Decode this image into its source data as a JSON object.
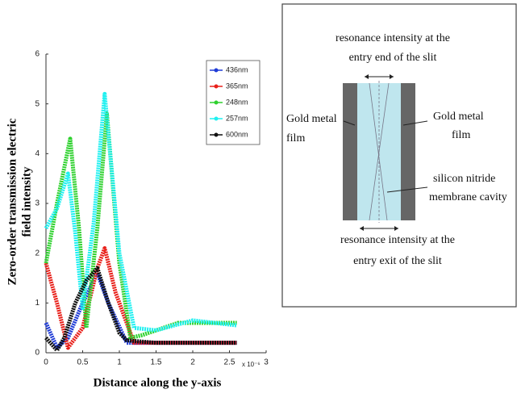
{
  "chart_data": {
    "type": "line",
    "ylabel": [
      "Zero-order transmission electric",
      "field intensity"
    ],
    "xlabel": "Distance along the y-axis",
    "x_offset_text": "x 10⁻⁶",
    "xlim": [
      0,
      3
    ],
    "ylim": [
      0,
      6
    ],
    "xticks": [
      0,
      0.5,
      1,
      1.5,
      2,
      2.5,
      3
    ],
    "yticks": [
      0,
      1,
      2,
      3,
      4,
      5,
      6
    ],
    "legend": "upper right",
    "series": [
      {
        "name": "436nm",
        "color": "#1f3bd6",
        "x": [
          0,
          0.15,
          0.3,
          0.5,
          0.7,
          0.85,
          1.1,
          1.5,
          2,
          2.6
        ],
        "values": [
          0.6,
          0.1,
          0.3,
          1.0,
          1.6,
          1.0,
          0.2,
          0.2,
          0.2,
          0.2
        ]
      },
      {
        "name": "365nm",
        "color": "#e8201a",
        "x": [
          0,
          0.15,
          0.3,
          0.5,
          0.7,
          0.8,
          0.95,
          1.2,
          1.5,
          2,
          2.6
        ],
        "values": [
          1.8,
          1.0,
          0.1,
          0.5,
          1.7,
          2.1,
          1.2,
          0.2,
          0.2,
          0.2,
          0.2
        ]
      },
      {
        "name": "248nm",
        "color": "#2ed12e",
        "x": [
          0,
          0.15,
          0.33,
          0.45,
          0.55,
          0.7,
          0.83,
          1.0,
          1.15,
          1.3,
          1.8,
          2.2,
          2.6
        ],
        "values": [
          1.8,
          3.0,
          4.3,
          2.5,
          0.5,
          2.5,
          4.8,
          1.8,
          0.3,
          0.35,
          0.6,
          0.6,
          0.6
        ]
      },
      {
        "name": "257nm",
        "color": "#20f0f0",
        "x": [
          0,
          0.15,
          0.3,
          0.4,
          0.5,
          0.65,
          0.8,
          1.0,
          1.2,
          1.5,
          2.0,
          2.6
        ],
        "values": [
          2.5,
          2.9,
          3.6,
          2.4,
          0.9,
          2.6,
          5.2,
          2.0,
          0.5,
          0.45,
          0.65,
          0.55
        ]
      },
      {
        "name": "600nm",
        "color": "#111111",
        "x": [
          0,
          0.15,
          0.25,
          0.4,
          0.55,
          0.7,
          0.85,
          1.0,
          1.1,
          1.5,
          2.0,
          2.6
        ],
        "values": [
          0.3,
          0.05,
          0.3,
          1.0,
          1.45,
          1.7,
          1.0,
          0.4,
          0.25,
          0.2,
          0.2,
          0.2
        ]
      }
    ]
  },
  "diagram": {
    "top_label": [
      "resonance intensity at the",
      "entry end of the slit"
    ],
    "left_label": [
      "Gold metal",
      "film"
    ],
    "right_label": [
      "Gold metal",
      "film"
    ],
    "cavity_label": [
      "silicon nitride",
      "membrane cavity"
    ],
    "bottom_label": [
      "resonance intensity at the",
      "entry exit of the slit"
    ]
  }
}
